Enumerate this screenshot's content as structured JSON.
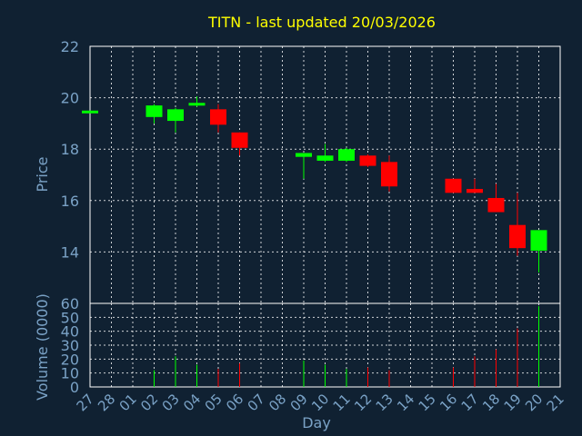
{
  "chart_data": {
    "type": "candlestick",
    "title": "TITN - last updated 20/03/2026",
    "xlabel": "Day",
    "colors": {
      "background": "#102132",
      "up": "#00ff00",
      "down": "#ff0000",
      "title": "#ffff00",
      "axis_text": "#7aa2c6",
      "frame": "#ffffff",
      "grid": "#ffffff"
    },
    "x_ticks": [
      "27",
      "28",
      "01",
      "02",
      "03",
      "04",
      "05",
      "06",
      "07",
      "08",
      "09",
      "10",
      "11",
      "12",
      "13",
      "14",
      "15",
      "16",
      "17",
      "18",
      "19",
      "20",
      "21"
    ],
    "price_panel": {
      "ylabel": "Price",
      "ylim": [
        12,
        22
      ],
      "yticks": [
        "14",
        "16",
        "18",
        "20",
        "22"
      ],
      "grid": true
    },
    "volume_panel": {
      "ylabel": "Volume (0000)",
      "ylim": [
        0,
        60
      ],
      "yticks": [
        "0",
        "10",
        "20",
        "30",
        "40",
        "50",
        "60"
      ],
      "grid": true
    },
    "candles": [
      {
        "day": "27",
        "open": 19.45,
        "close": 19.5,
        "high": 19.5,
        "low": 19.45,
        "volume": 0
      },
      {
        "day": "02",
        "open": 19.25,
        "close": 19.7,
        "high": 19.75,
        "low": 19.0,
        "volume": 12
      },
      {
        "day": "03",
        "open": 19.1,
        "close": 19.55,
        "high": 19.6,
        "low": 18.65,
        "volume": 22
      },
      {
        "day": "04",
        "open": 19.75,
        "close": 19.8,
        "high": 20.05,
        "low": 19.65,
        "volume": 16
      },
      {
        "day": "05",
        "open": 19.55,
        "close": 18.95,
        "high": 19.75,
        "low": 18.65,
        "volume": 13
      },
      {
        "day": "06",
        "open": 18.65,
        "close": 18.05,
        "high": 18.65,
        "low": 17.75,
        "volume": 17
      },
      {
        "day": "09",
        "open": 17.7,
        "close": 17.85,
        "high": 17.85,
        "low": 16.85,
        "volume": 19
      },
      {
        "day": "10",
        "open": 17.55,
        "close": 17.75,
        "high": 18.2,
        "low": 17.5,
        "volume": 16
      },
      {
        "day": "11",
        "open": 17.55,
        "close": 18.0,
        "high": 18.05,
        "low": 17.5,
        "volume": 13
      },
      {
        "day": "12",
        "open": 17.75,
        "close": 17.35,
        "high": 17.8,
        "low": 17.3,
        "volume": 14
      },
      {
        "day": "13",
        "open": 17.5,
        "close": 16.55,
        "high": 17.75,
        "low": 16.35,
        "volume": 12
      },
      {
        "day": "16",
        "open": 16.85,
        "close": 16.3,
        "high": 16.85,
        "low": 16.3,
        "volume": 14
      },
      {
        "day": "17",
        "open": 16.45,
        "close": 16.3,
        "high": 16.85,
        "low": 16.3,
        "volume": 22
      },
      {
        "day": "18",
        "open": 16.1,
        "close": 15.55,
        "high": 16.65,
        "low": 15.55,
        "volume": 27
      },
      {
        "day": "19",
        "open": 15.05,
        "close": 14.15,
        "high": 16.3,
        "low": 13.85,
        "volume": 42
      },
      {
        "day": "20",
        "open": 14.05,
        "close": 14.85,
        "high": 14.85,
        "low": 13.2,
        "volume": 58
      }
    ]
  }
}
